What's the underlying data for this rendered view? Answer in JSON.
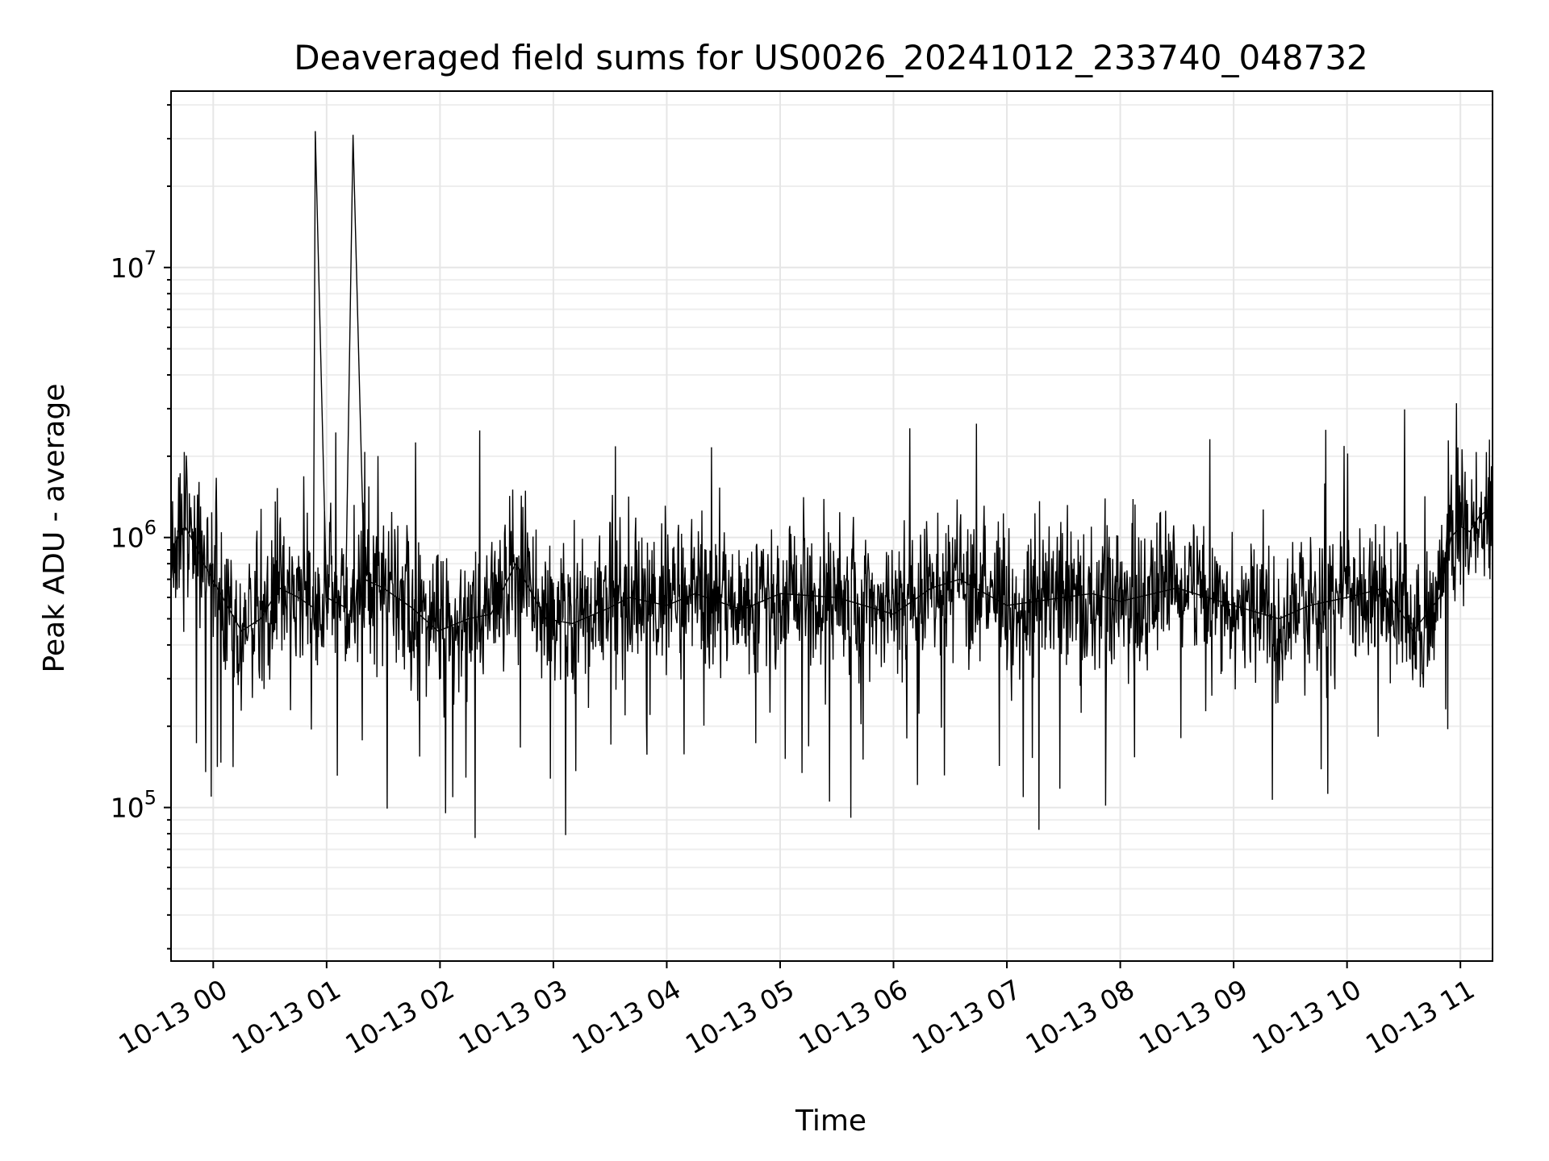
{
  "chart_data": {
    "type": "line",
    "title": "Deaveraged field sums for US0026_20241012_233740_048732",
    "xlabel": "Time",
    "ylabel": "Peak ADU - average",
    "y_scale": "log",
    "ylim": [
      27000,
      45000000
    ],
    "xlim": [
      "2024-10-12 23:37:40",
      "2024-10-13 11:17:00"
    ],
    "grid": true,
    "legend": "none",
    "line_color": "#000000",
    "x_ticks": [
      {
        "t": "2024-10-13 00:00",
        "label": "10-13 00"
      },
      {
        "t": "2024-10-13 01:00",
        "label": "10-13 01"
      },
      {
        "t": "2024-10-13 02:00",
        "label": "10-13 02"
      },
      {
        "t": "2024-10-13 03:00",
        "label": "10-13 03"
      },
      {
        "t": "2024-10-13 04:00",
        "label": "10-13 04"
      },
      {
        "t": "2024-10-13 05:00",
        "label": "10-13 05"
      },
      {
        "t": "2024-10-13 06:00",
        "label": "10-13 06"
      },
      {
        "t": "2024-10-13 07:00",
        "label": "10-13 07"
      },
      {
        "t": "2024-10-13 08:00",
        "label": "10-13 08"
      },
      {
        "t": "2024-10-13 09:00",
        "label": "10-13 09"
      },
      {
        "t": "2024-10-13 10:00",
        "label": "10-13 10"
      },
      {
        "t": "2024-10-13 11:00",
        "label": "10-13 11"
      }
    ],
    "y_ticks": [
      {
        "value": 100000,
        "base": "10",
        "exp": "5"
      },
      {
        "value": 1000000,
        "base": "10",
        "exp": "6"
      },
      {
        "value": 10000000,
        "base": "10",
        "exp": "7"
      }
    ],
    "x": [
      "2024-10-12 23:37:40",
      "2024-10-12 23:45",
      "2024-10-12 23:50",
      "2024-10-12 23:55",
      "2024-10-13 00:05",
      "2024-10-13 00:15",
      "2024-10-13 00:25",
      "2024-10-13 00:35",
      "2024-10-13 00:45",
      "2024-10-13 00:53",
      "2024-10-13 00:54",
      "2024-10-13 01:00",
      "2024-10-13 01:10",
      "2024-10-13 01:14",
      "2024-10-13 01:20",
      "2024-10-13 01:30",
      "2024-10-13 01:45",
      "2024-10-13 01:59",
      "2024-10-13 02:15",
      "2024-10-13 02:27",
      "2024-10-13 02:40",
      "2024-10-13 02:56",
      "2024-10-13 03:10",
      "2024-10-13 03:30",
      "2024-10-13 03:40",
      "2024-10-13 04:00",
      "2024-10-13 04:15",
      "2024-10-13 04:40",
      "2024-10-13 05:00",
      "2024-10-13 05:30",
      "2024-10-13 06:00",
      "2024-10-13 06:20",
      "2024-10-13 06:35",
      "2024-10-13 07:00",
      "2024-10-13 07:30",
      "2024-10-13 07:45",
      "2024-10-13 08:00",
      "2024-10-13 08:30",
      "2024-10-13 09:00",
      "2024-10-13 09:24",
      "2024-10-13 09:40",
      "2024-10-13 10:00",
      "2024-10-13 10:20",
      "2024-10-13 10:35",
      "2024-10-13 10:49",
      "2024-10-13 10:55",
      "2024-10-13 11:00",
      "2024-10-13 11:05",
      "2024-10-13 11:10",
      "2024-10-13 11:17"
    ],
    "values": [
      900000,
      1100000,
      950000,
      800000,
      600000,
      450000,
      500000,
      650000,
      600000,
      550000,
      32000000,
      600000,
      550000,
      31000000,
      700000,
      650000,
      550000,
      450000,
      500000,
      520000,
      800000,
      500000,
      480000,
      550000,
      600000,
      560000,
      620000,
      540000,
      620000,
      600000,
      520000,
      650000,
      700000,
      560000,
      600000,
      620000,
      580000,
      650000,
      560000,
      500000,
      560000,
      600000,
      650000,
      450000,
      600000,
      1000000,
      1100000,
      1050000,
      1200000,
      1300000
    ]
  }
}
